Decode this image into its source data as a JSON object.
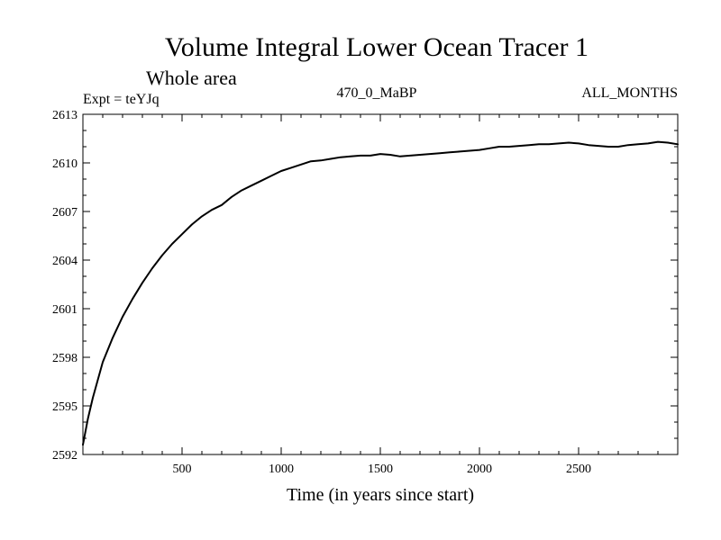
{
  "chart_data": {
    "type": "line",
    "title": "Volume Integral Lower Ocean Tracer 1",
    "subtitle": "Whole area",
    "header_left": "Expt = teYJq",
    "header_center": "470_0_MaBP",
    "header_right": "ALL_MONTHS",
    "xlabel": "Time (in years since start)",
    "ylabel": "",
    "xlim": [
      0,
      3000
    ],
    "ylim": [
      2592,
      2613
    ],
    "x_ticks": [
      500,
      1000,
      1500,
      2000,
      2500
    ],
    "y_ticks": [
      2592,
      2595,
      2598,
      2601,
      2604,
      2607,
      2610,
      2613
    ],
    "series": [
      {
        "name": "Volume Integral Lower Ocean Tracer 1",
        "x": [
          0,
          25,
          50,
          100,
          150,
          200,
          250,
          300,
          350,
          400,
          450,
          500,
          550,
          600,
          650,
          700,
          750,
          800,
          850,
          900,
          950,
          1000,
          1050,
          1100,
          1150,
          1200,
          1250,
          1300,
          1350,
          1400,
          1450,
          1500,
          1550,
          1600,
          1650,
          1700,
          1750,
          1800,
          1850,
          1900,
          1950,
          2000,
          2050,
          2100,
          2150,
          2200,
          2250,
          2300,
          2350,
          2400,
          2450,
          2500,
          2550,
          2600,
          2650,
          2700,
          2750,
          2800,
          2850,
          2900,
          2950,
          3000
        ],
        "y": [
          2592.6,
          2594.2,
          2595.5,
          2597.7,
          2599.2,
          2600.5,
          2601.6,
          2602.6,
          2603.5,
          2604.3,
          2605.0,
          2605.6,
          2606.2,
          2606.7,
          2607.1,
          2607.4,
          2607.9,
          2608.3,
          2608.6,
          2608.9,
          2609.2,
          2609.5,
          2609.7,
          2609.9,
          2610.1,
          2610.15,
          2610.25,
          2610.35,
          2610.4,
          2610.45,
          2610.45,
          2610.55,
          2610.5,
          2610.4,
          2610.45,
          2610.5,
          2610.55,
          2610.6,
          2610.65,
          2610.7,
          2610.75,
          2610.8,
          2610.9,
          2611.0,
          2611.0,
          2611.05,
          2611.1,
          2611.15,
          2611.15,
          2611.2,
          2611.25,
          2611.2,
          2611.1,
          2611.05,
          2611.0,
          2611.0,
          2611.1,
          2611.15,
          2611.2,
          2611.3,
          2611.25,
          2611.15
        ]
      }
    ]
  },
  "colors": {
    "line": "#000000",
    "background": "#ffffff"
  }
}
